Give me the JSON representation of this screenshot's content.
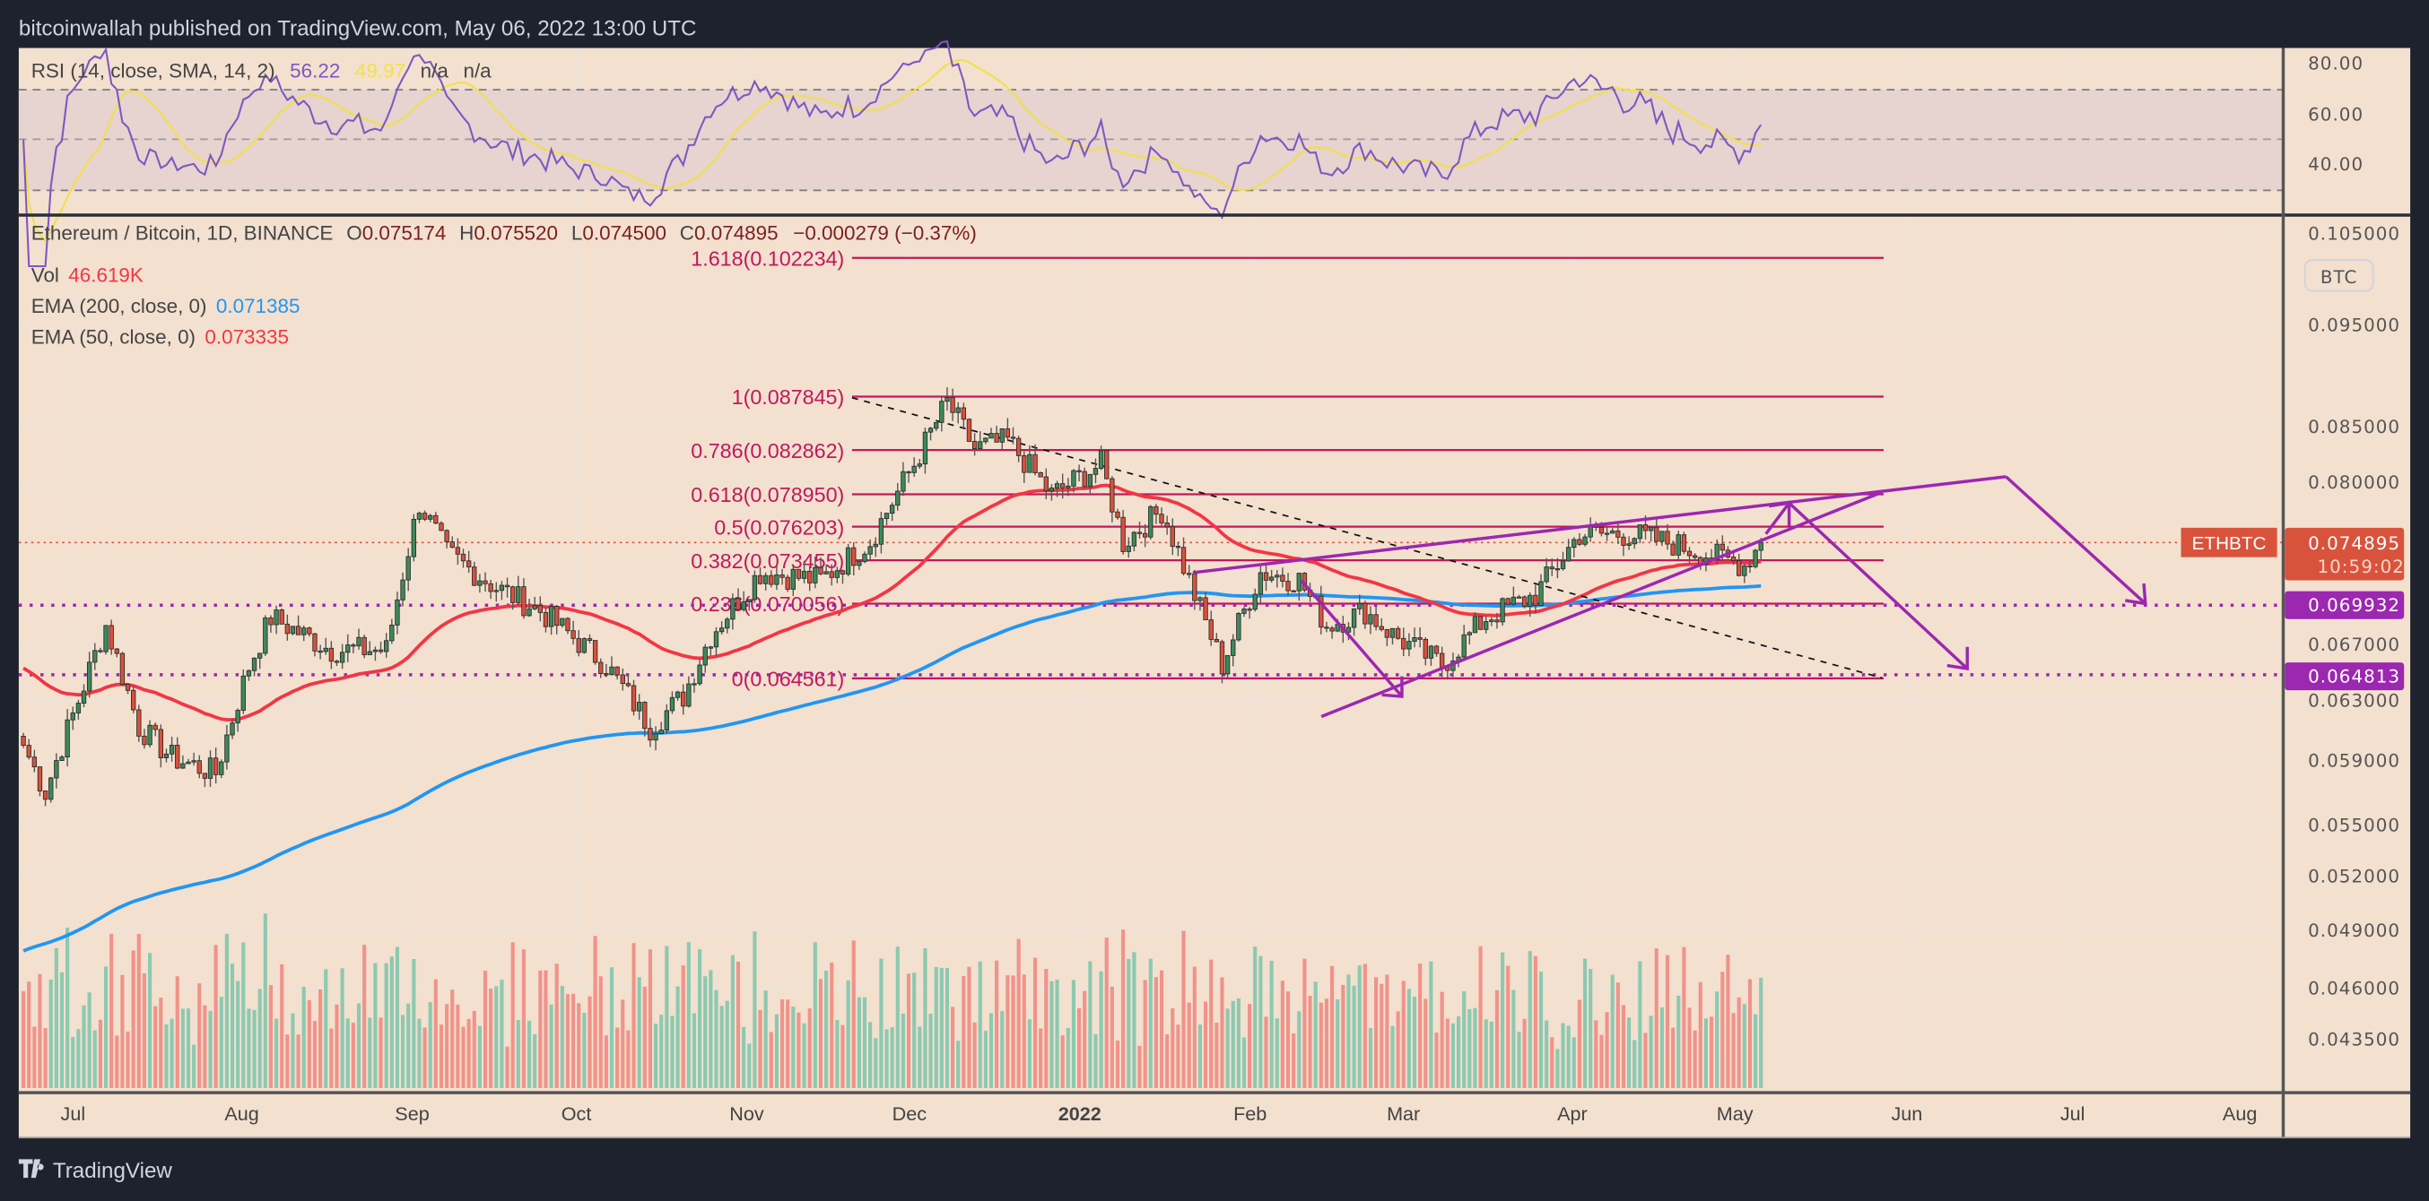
{
  "header": {
    "published": "bitcoinwallah published on TradingView.com, May 06, 2022 13:00 UTC"
  },
  "footer": {
    "brand": "TradingView",
    "logo": "tradingview-logo-icon"
  },
  "rsi": {
    "label": "RSI (14, close, SMA, 14, 2)",
    "value": "56.22",
    "sma": "49.97",
    "na1": "n/a",
    "na2": "n/a",
    "axis": [
      "80.00",
      "60.00",
      "40.00"
    ],
    "bands": [
      70,
      50,
      30
    ]
  },
  "legend": {
    "symbol": "Ethereum / Bitcoin, 1D, BINANCE",
    "o_label": "O",
    "o": "0.075174",
    "h_label": "H",
    "h": "0.075520",
    "l_label": "L",
    "l": "0.074500",
    "c_label": "C",
    "c": "0.074895",
    "change": "−0.000279 (−0.37%)",
    "vol_label": "Vol",
    "vol": "46.619K",
    "ema200_label": "EMA (200, close, 0)",
    "ema200": "0.071385",
    "ema50_label": "EMA (50, close, 0)",
    "ema50": "0.073335"
  },
  "price_axis": {
    "currency_badge": "BTC",
    "labels": [
      "0.105000",
      "0.095000",
      "0.085000",
      "0.080000",
      "0.067000",
      "0.063000",
      "0.059000",
      "0.055000",
      "0.052000",
      "0.049000",
      "0.046000",
      "0.043500"
    ],
    "symbol_tag": "ETHBTC",
    "last_price": "0.074895",
    "countdown": "10:59:02",
    "level_tags": [
      "0.069932",
      "0.064813"
    ]
  },
  "fib_levels": [
    {
      "label": "1.618(0.102234)",
      "price": 0.102234
    },
    {
      "label": "1(0.087845)",
      "price": 0.087845
    },
    {
      "label": "0.786(0.082862)",
      "price": 0.082862
    },
    {
      "label": "0.618(0.078950)",
      "price": 0.07895
    },
    {
      "label": "0.5(0.076203)",
      "price": 0.076203
    },
    {
      "label": "0.382(0.073455)",
      "price": 0.073455
    },
    {
      "label": "0.236(0.070056)",
      "price": 0.070056
    },
    {
      "label": "0(0.064561)",
      "price": 0.064561
    }
  ],
  "time_axis": [
    "Jul",
    "Aug",
    "Sep",
    "Oct",
    "Nov",
    "Dec",
    "2022",
    "Feb",
    "Mar",
    "Apr",
    "May",
    "Jun",
    "Jul",
    "Aug"
  ],
  "colors": {
    "up": "#3d8a5a",
    "down": "#d9513c",
    "ema200": "#2196f3",
    "ema50": "#f23645",
    "fib": "#c2185b",
    "drawing": "#9c27b0",
    "rsi": "#7e57c2",
    "rsi_sma": "#f2e04a",
    "bg": "#f3e0cf"
  },
  "chart_data": {
    "type": "candlestick",
    "title": "Ethereum / Bitcoin, 1D, BINANCE",
    "scale": "log",
    "ylim": [
      0.0415,
      0.108
    ],
    "x_unit": "days since 2021-06-25",
    "close_path": [
      [
        0,
        0.06
      ],
      [
        4,
        0.057
      ],
      [
        10,
        0.063
      ],
      [
        15,
        0.0684
      ],
      [
        21,
        0.0612
      ],
      [
        27,
        0.0592
      ],
      [
        35,
        0.0582
      ],
      [
        41,
        0.0654
      ],
      [
        45,
        0.069
      ],
      [
        56,
        0.0666
      ],
      [
        66,
        0.0666
      ],
      [
        72,
        0.0782
      ],
      [
        77,
        0.074
      ],
      [
        86,
        0.0713
      ],
      [
        94,
        0.0695
      ],
      [
        106,
        0.0655
      ],
      [
        114,
        0.0612
      ],
      [
        120,
        0.0633
      ],
      [
        125,
        0.0677
      ],
      [
        134,
        0.0725
      ],
      [
        145,
        0.0719
      ],
      [
        154,
        0.075
      ],
      [
        162,
        0.0816
      ],
      [
        168,
        0.0873
      ],
      [
        173,
        0.083
      ],
      [
        179,
        0.0837
      ],
      [
        187,
        0.0789
      ],
      [
        196,
        0.0816
      ],
      [
        200,
        0.0749
      ],
      [
        207,
        0.0776
      ],
      [
        213,
        0.0707
      ],
      [
        218,
        0.0655
      ],
      [
        225,
        0.0725
      ],
      [
        232,
        0.0719
      ],
      [
        237,
        0.0684
      ],
      [
        244,
        0.0695
      ],
      [
        249,
        0.0677
      ],
      [
        258,
        0.0655
      ],
      [
        266,
        0.069
      ],
      [
        275,
        0.0707
      ],
      [
        283,
        0.0756
      ],
      [
        292,
        0.0756
      ],
      [
        300,
        0.0748
      ],
      [
        308,
        0.0737
      ],
      [
        313,
        0.0731
      ],
      [
        316,
        0.074895
      ]
    ],
    "ema200_seed": 0.0478,
    "ema50_seed": 0.0655,
    "horizontal_levels": [
      0.069932,
      0.064813
    ],
    "last_price": 0.074895
  }
}
